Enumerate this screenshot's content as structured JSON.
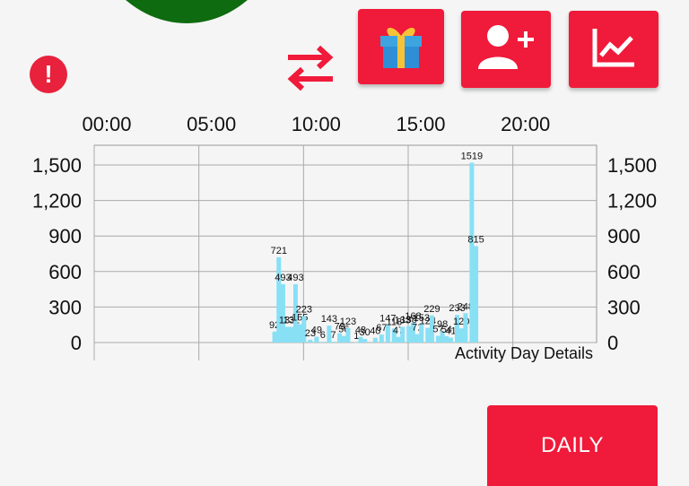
{
  "header": {
    "alert_icon_text": "!",
    "actions": [
      {
        "name": "gift-icon"
      },
      {
        "name": "add-user-icon"
      },
      {
        "name": "chart-icon"
      }
    ]
  },
  "chart_data": {
    "type": "bar",
    "title": "",
    "caption": "Activity Day Details",
    "x_ticks": [
      "00:00",
      "05:00",
      "10:00",
      "15:00",
      "20:00"
    ],
    "y_ticks": [
      "0",
      "300",
      "600",
      "900",
      "1,200",
      "1,500"
    ],
    "ylim": [
      0,
      1500
    ],
    "xlim_hours": [
      0,
      24
    ],
    "bar_color": "#88e0f5",
    "bars": [
      {
        "x": 8.6,
        "y": 92,
        "label": "92"
      },
      {
        "x": 8.8,
        "y": 721,
        "label": "721"
      },
      {
        "x": 9.0,
        "y": 493,
        "label": "493"
      },
      {
        "x": 9.2,
        "y": 133,
        "label": "133"
      },
      {
        "x": 9.4,
        "y": 132,
        "label": "132"
      },
      {
        "x": 9.6,
        "y": 493,
        "label": "493"
      },
      {
        "x": 9.8,
        "y": 155,
        "label": "155"
      },
      {
        "x": 10.0,
        "y": 223,
        "label": "223"
      },
      {
        "x": 10.3,
        "y": 23,
        "label": "23"
      },
      {
        "x": 10.6,
        "y": 49,
        "label": "49"
      },
      {
        "x": 10.9,
        "y": 6,
        "label": "6"
      },
      {
        "x": 11.2,
        "y": 143,
        "label": "143"
      },
      {
        "x": 11.4,
        "y": 7,
        "label": "7"
      },
      {
        "x": 11.7,
        "y": 79,
        "label": "79"
      },
      {
        "x": 11.9,
        "y": 56,
        "label": "56"
      },
      {
        "x": 12.1,
        "y": 123,
        "label": "123"
      },
      {
        "x": 12.5,
        "y": 1,
        "label": "1"
      },
      {
        "x": 12.7,
        "y": 48,
        "label": "48"
      },
      {
        "x": 12.9,
        "y": 30,
        "label": "30"
      },
      {
        "x": 13.4,
        "y": 40,
        "label": "40"
      },
      {
        "x": 13.7,
        "y": 67,
        "label": "67"
      },
      {
        "x": 14.0,
        "y": 147,
        "label": "147"
      },
      {
        "x": 14.3,
        "y": 118,
        "label": "118"
      },
      {
        "x": 14.5,
        "y": 47,
        "label": "47"
      },
      {
        "x": 14.7,
        "y": 133,
        "label": "133"
      },
      {
        "x": 15.0,
        "y": 138,
        "label": "138"
      },
      {
        "x": 15.2,
        "y": 168,
        "label": "168"
      },
      {
        "x": 15.4,
        "y": 71,
        "label": "71"
      },
      {
        "x": 15.6,
        "y": 153,
        "label": "153"
      },
      {
        "x": 15.9,
        "y": 124,
        "label": "124"
      },
      {
        "x": 16.1,
        "y": 229,
        "label": "229"
      },
      {
        "x": 16.4,
        "y": 57,
        "label": "57"
      },
      {
        "x": 16.6,
        "y": 98,
        "label": "98"
      },
      {
        "x": 16.8,
        "y": 54,
        "label": "54"
      },
      {
        "x": 17.0,
        "y": 41,
        "label": "41"
      },
      {
        "x": 17.3,
        "y": 233,
        "label": "233"
      },
      {
        "x": 17.5,
        "y": 120,
        "label": "120"
      },
      {
        "x": 17.7,
        "y": 248,
        "label": "248"
      },
      {
        "x": 18.0,
        "y": 1519,
        "label": "1519"
      },
      {
        "x": 18.2,
        "y": 815,
        "label": "815"
      }
    ]
  },
  "footer": {
    "daily_label": "DAILY"
  }
}
